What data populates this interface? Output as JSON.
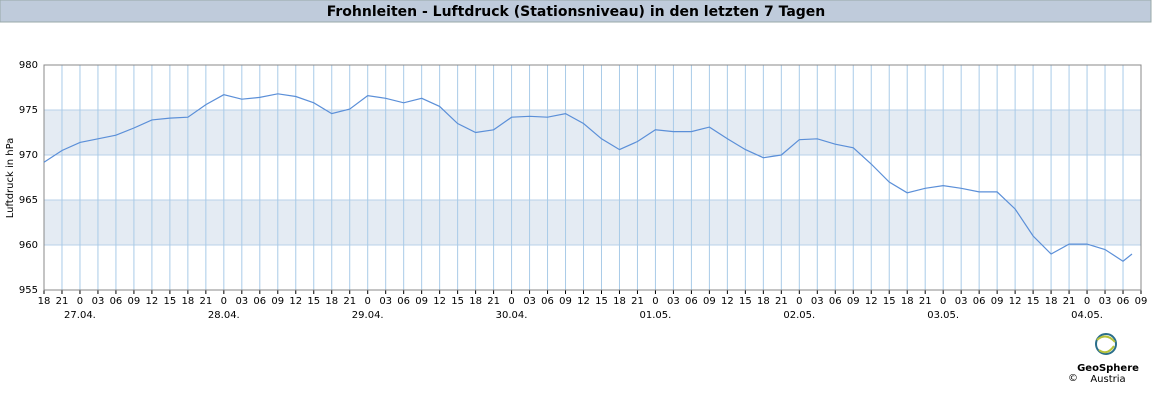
{
  "chart_data": {
    "type": "line",
    "title": "Frohnleiten - Luftdruck (Stationsniveau) in den letzten 7 Tagen",
    "y_label": "Luftdruck in hPa",
    "x": [
      0,
      3,
      6,
      9,
      12,
      15,
      18,
      21,
      24,
      27,
      30,
      33,
      36,
      39,
      42,
      45,
      48,
      51,
      54,
      57,
      60,
      63,
      66,
      69,
      72,
      75,
      78,
      81,
      84,
      87,
      90,
      93,
      96,
      99,
      102,
      105,
      108,
      111,
      114,
      117,
      120,
      123,
      126,
      129,
      132,
      135,
      138,
      141,
      144,
      147,
      150,
      153,
      156,
      159,
      162,
      165,
      168,
      171,
      174,
      177,
      180,
      181.5
    ],
    "series": [
      {
        "name": "Luftdruck",
        "color": "#5b8fd8",
        "values": [
          969.2,
          970.5,
          971.4,
          971.8,
          972.2,
          973.0,
          973.9,
          974.1,
          974.2,
          975.6,
          976.7,
          976.2,
          976.4,
          976.8,
          976.5,
          975.8,
          974.6,
          975.1,
          976.6,
          976.3,
          975.8,
          976.3,
          975.4,
          973.5,
          972.5,
          972.8,
          974.2,
          974.3,
          974.2,
          974.6,
          973.5,
          971.8,
          970.6,
          971.5,
          972.8,
          972.6,
          972.6,
          973.1,
          971.8,
          970.6,
          969.7,
          970.0,
          971.7,
          971.8,
          971.2,
          970.8,
          969.0,
          967.0,
          965.8,
          966.3,
          966.6,
          966.3,
          965.9,
          965.9,
          964.0,
          961.0,
          959.0,
          960.1,
          960.1,
          959.5,
          958.2,
          959.0
        ]
      }
    ],
    "xlim": [
      0,
      183
    ],
    "xticks": [
      {
        "value": 0,
        "label": "18"
      },
      {
        "value": 3,
        "label": "21"
      },
      {
        "value": 6,
        "label": "0"
      },
      {
        "value": 9,
        "label": "03"
      },
      {
        "value": 12,
        "label": "06"
      },
      {
        "value": 15,
        "label": "09"
      },
      {
        "value": 18,
        "label": "12"
      },
      {
        "value": 21,
        "label": "15"
      },
      {
        "value": 24,
        "label": "18"
      },
      {
        "value": 27,
        "label": "21"
      },
      {
        "value": 30,
        "label": "0"
      },
      {
        "value": 33,
        "label": "03"
      },
      {
        "value": 36,
        "label": "06"
      },
      {
        "value": 39,
        "label": "09"
      },
      {
        "value": 42,
        "label": "12"
      },
      {
        "value": 45,
        "label": "15"
      },
      {
        "value": 48,
        "label": "18"
      },
      {
        "value": 51,
        "label": "21"
      },
      {
        "value": 54,
        "label": "0"
      },
      {
        "value": 57,
        "label": "03"
      },
      {
        "value": 60,
        "label": "06"
      },
      {
        "value": 63,
        "label": "09"
      },
      {
        "value": 66,
        "label": "12"
      },
      {
        "value": 69,
        "label": "15"
      },
      {
        "value": 72,
        "label": "18"
      },
      {
        "value": 75,
        "label": "21"
      },
      {
        "value": 78,
        "label": "0"
      },
      {
        "value": 81,
        "label": "03"
      },
      {
        "value": 84,
        "label": "06"
      },
      {
        "value": 87,
        "label": "09"
      },
      {
        "value": 90,
        "label": "12"
      },
      {
        "value": 93,
        "label": "15"
      },
      {
        "value": 96,
        "label": "18"
      },
      {
        "value": 99,
        "label": "21"
      },
      {
        "value": 102,
        "label": "0"
      },
      {
        "value": 105,
        "label": "03"
      },
      {
        "value": 108,
        "label": "06"
      },
      {
        "value": 111,
        "label": "09"
      },
      {
        "value": 114,
        "label": "12"
      },
      {
        "value": 117,
        "label": "15"
      },
      {
        "value": 120,
        "label": "18"
      },
      {
        "value": 123,
        "label": "21"
      },
      {
        "value": 126,
        "label": "0"
      },
      {
        "value": 129,
        "label": "03"
      },
      {
        "value": 132,
        "label": "06"
      },
      {
        "value": 135,
        "label": "09"
      },
      {
        "value": 138,
        "label": "12"
      },
      {
        "value": 141,
        "label": "15"
      },
      {
        "value": 144,
        "label": "18"
      },
      {
        "value": 147,
        "label": "21"
      },
      {
        "value": 150,
        "label": "0"
      },
      {
        "value": 153,
        "label": "03"
      },
      {
        "value": 156,
        "label": "06"
      },
      {
        "value": 159,
        "label": "09"
      },
      {
        "value": 162,
        "label": "12"
      },
      {
        "value": 165,
        "label": "15"
      },
      {
        "value": 168,
        "label": "18"
      },
      {
        "value": 171,
        "label": "21"
      },
      {
        "value": 174,
        "label": "0"
      },
      {
        "value": 177,
        "label": "03"
      },
      {
        "value": 180,
        "label": "06"
      },
      {
        "value": 183,
        "label": "09"
      }
    ],
    "date_ticks": [
      {
        "value": 6,
        "label": "27.04."
      },
      {
        "value": 30,
        "label": "28.04."
      },
      {
        "value": 54,
        "label": "29.04."
      },
      {
        "value": 78,
        "label": "30.04."
      },
      {
        "value": 102,
        "label": "01.05."
      },
      {
        "value": 126,
        "label": "02.05."
      },
      {
        "value": 150,
        "label": "03.05."
      },
      {
        "value": 174,
        "label": "04.05."
      }
    ],
    "ylim": [
      955,
      980
    ],
    "yticks": [
      955,
      960,
      965,
      970,
      975,
      980
    ],
    "grid": true
  },
  "footer": {
    "copyright": "©",
    "logo_line1": "GeoSphere",
    "logo_line2": "Austria"
  }
}
